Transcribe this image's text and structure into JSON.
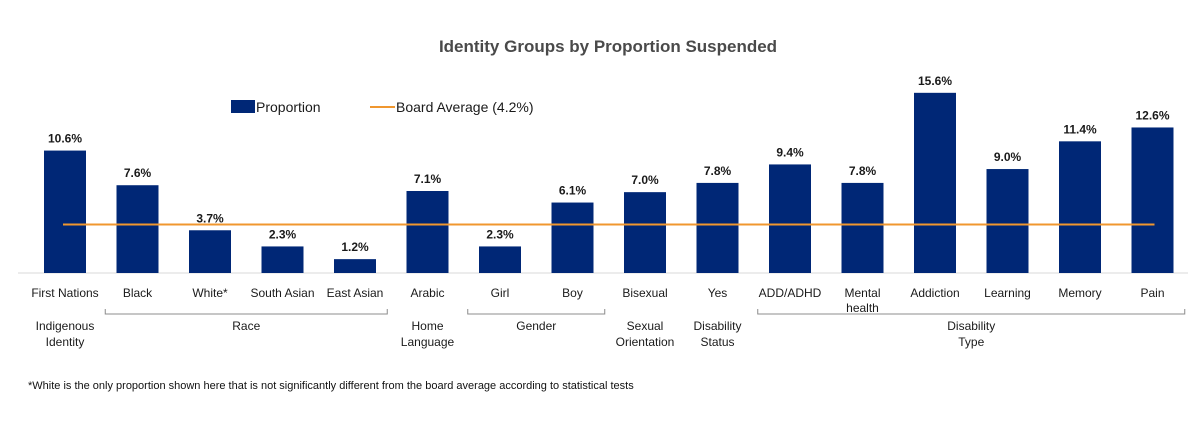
{
  "chart_data": {
    "type": "bar",
    "title": "Identity Groups by Proportion Suspended",
    "categories": [
      "First Nations",
      "Black",
      "White*",
      "South Asian",
      "East Asian",
      "Arabic",
      "Girl",
      "Boy",
      "Bisexual",
      "Yes",
      "ADD/ADHD",
      "Mental health",
      "Addiction",
      "Learning",
      "Memory",
      "Pain"
    ],
    "series": [
      {
        "name": "Proportion",
        "values": [
          10.6,
          7.6,
          3.7,
          2.3,
          1.2,
          7.1,
          2.3,
          6.1,
          7.0,
          7.8,
          9.4,
          7.8,
          15.6,
          9.0,
          11.4,
          12.6
        ],
        "labels": [
          "10.6%",
          "7.6%",
          "3.7%",
          "2.3%",
          "1.2%",
          "7.1%",
          "2.3%",
          "6.1%",
          "7.0%",
          "7.8%",
          "9.4%",
          "7.8%",
          "15.6%",
          "9.0%",
          "11.4%",
          "12.6%"
        ],
        "color": "#002776"
      }
    ],
    "reference_line": {
      "name": "Board Average (4.2%)",
      "value": 4.2,
      "color": "#f0972f"
    },
    "groups": [
      {
        "label": "Indigenous Identity",
        "from": 0,
        "to": 0
      },
      {
        "label": "Race",
        "from": 1,
        "to": 4
      },
      {
        "label": "Home Language",
        "from": 5,
        "to": 5
      },
      {
        "label": "Gender",
        "from": 6,
        "to": 7
      },
      {
        "label": "Sexual Orientation",
        "from": 8,
        "to": 8
      },
      {
        "label": "Disability Status",
        "from": 9,
        "to": 9
      },
      {
        "label": "Disability Type",
        "from": 10,
        "to": 15
      }
    ],
    "ylim": [
      0,
      16
    ],
    "grid": false,
    "legend": "top-left",
    "xlabel": "",
    "ylabel": ""
  },
  "footnote": "*White is the only proportion shown here that is not significantly different from the board average according to statistical tests"
}
